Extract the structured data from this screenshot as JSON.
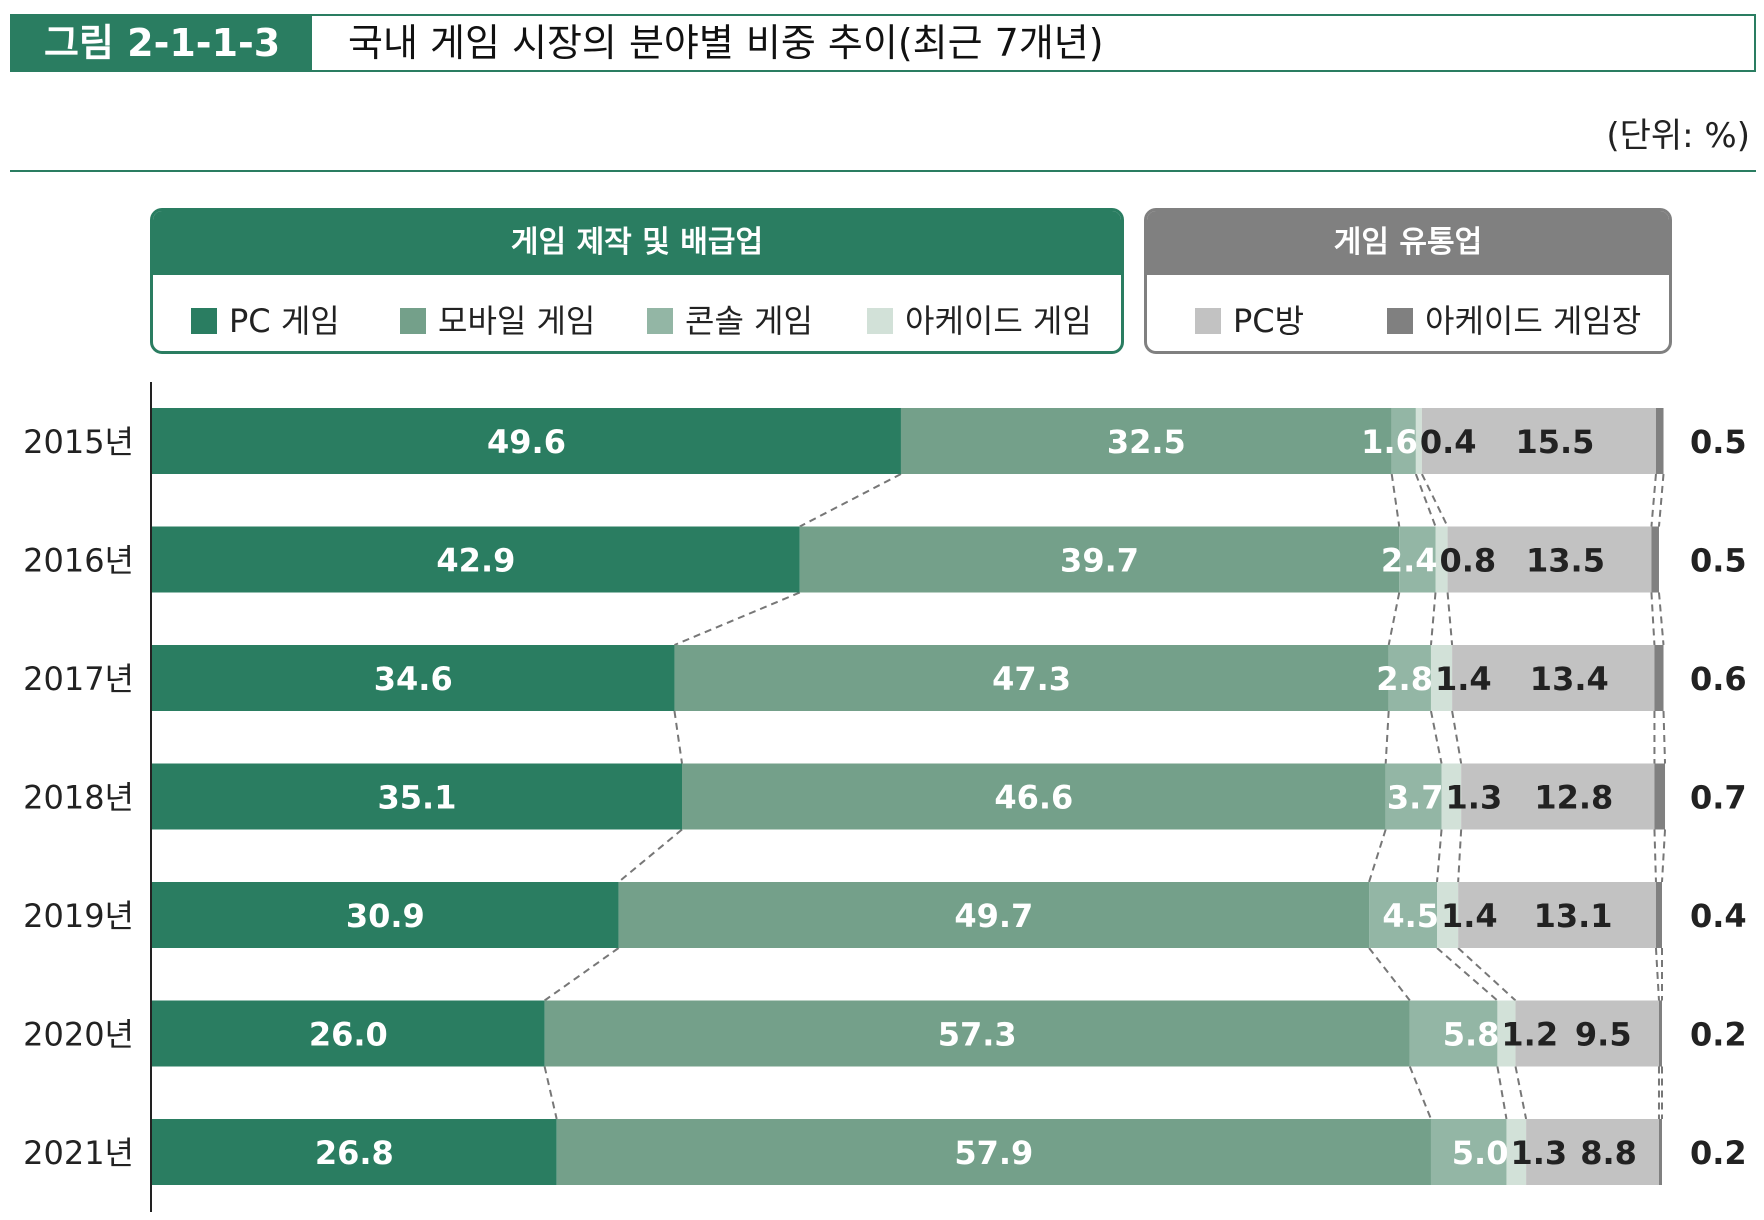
{
  "header": {
    "figure_label": "그림 2-1-1-3",
    "title": "국내 게임 시장의 분야별 비중 추이(최근 7개년)",
    "unit": "(단위: %)"
  },
  "legend": {
    "groups": [
      {
        "title": "게임 제작 및 배급업",
        "color": "#2a7d61",
        "items": [
          {
            "label": "PC 게임",
            "color": "#2a7d61"
          },
          {
            "label": "모바일 게임",
            "color": "#74a08a"
          },
          {
            "label": "콘솔 게임",
            "color": "#93b6a5"
          },
          {
            "label": "아케이드 게임",
            "color": "#d2e1d8"
          }
        ]
      },
      {
        "title": "게임 유통업",
        "color": "#808080",
        "items": [
          {
            "label": "PC방",
            "color": "#c2c2c2"
          },
          {
            "label": "아케이드 게임장",
            "color": "#808080"
          }
        ]
      }
    ]
  },
  "chart_data": {
    "type": "bar",
    "orientation": "horizontal",
    "stacked": true,
    "categories": [
      "2015년",
      "2016년",
      "2017년",
      "2018년",
      "2019년",
      "2020년",
      "2021년"
    ],
    "series": [
      {
        "name": "PC 게임",
        "color": "#2a7d61",
        "values": [
          49.6,
          42.9,
          34.6,
          35.1,
          30.9,
          26.0,
          26.8
        ]
      },
      {
        "name": "모바일 게임",
        "color": "#74a08a",
        "values": [
          32.5,
          39.7,
          47.3,
          46.6,
          49.7,
          57.3,
          57.9
        ]
      },
      {
        "name": "콘솔 게임",
        "color": "#93b6a5",
        "values": [
          1.6,
          2.4,
          2.8,
          3.7,
          4.5,
          5.8,
          5.0
        ]
      },
      {
        "name": "아케이드 게임",
        "color": "#d2e1d8",
        "values": [
          0.4,
          0.8,
          1.4,
          1.3,
          1.4,
          1.2,
          1.3
        ]
      },
      {
        "name": "PC방",
        "color": "#c2c2c2",
        "values": [
          15.5,
          13.5,
          13.4,
          12.8,
          13.1,
          9.5,
          8.8
        ]
      },
      {
        "name": "아케이드 게임장",
        "color": "#808080",
        "values": [
          0.5,
          0.5,
          0.6,
          0.7,
          0.4,
          0.2,
          0.2
        ]
      }
    ],
    "value_labels": [
      [
        "49.6",
        "32.5",
        "1.6",
        "0.4",
        "15.5",
        "0.5"
      ],
      [
        "42.9",
        "39.7",
        "2.4",
        "0.8",
        "13.5",
        "0.5"
      ],
      [
        "34.6",
        "47.3",
        "2.8",
        "1.4",
        "13.4",
        "0.6"
      ],
      [
        "35.1",
        "46.6",
        "3.7",
        "1.3",
        "12.8",
        "0.7"
      ],
      [
        "30.9",
        "49.7",
        "4.5",
        "1.4",
        "13.1",
        "0.4"
      ],
      [
        "26.0",
        "57.3",
        "5.8",
        "1.2",
        "9.5",
        "0.2"
      ],
      [
        "26.8",
        "57.9",
        "5.0",
        "1.3",
        "8.8",
        "0.2"
      ]
    ],
    "xlim": [
      0,
      100
    ],
    "connectors": "dashed",
    "legend_position": "top"
  }
}
